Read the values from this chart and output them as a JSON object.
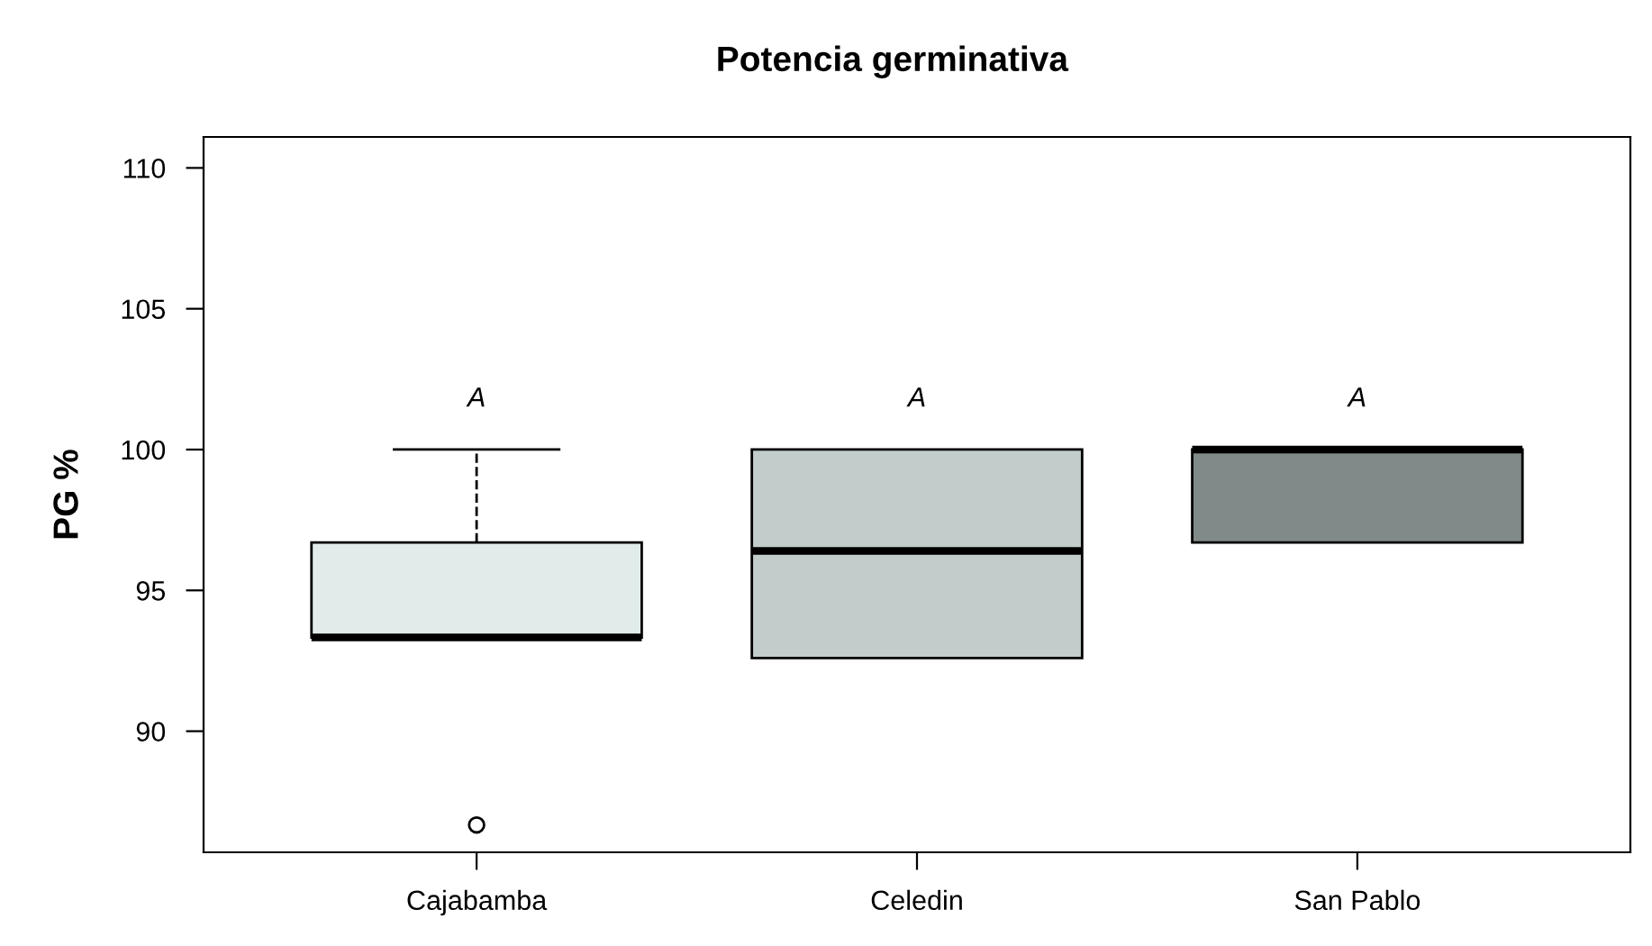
{
  "chart_data": {
    "type": "box",
    "title": "Potencia germinativa",
    "ylabel": "PG %",
    "categories": [
      "Cajabamba",
      "Celedin",
      "San Pablo"
    ],
    "colors": [
      "#e0ebea",
      "#c2cccb",
      "#808a88"
    ],
    "boxes": [
      {
        "low": 93.33,
        "q1": 93.33,
        "median": 93.33,
        "q3": 96.7,
        "high": 100,
        "outliers": [
          86.67
        ]
      },
      {
        "low": 92.6,
        "q1": 92.6,
        "median": 96.4,
        "q3": 100,
        "high": 100
      },
      {
        "low": 96.7,
        "q1": 96.7,
        "median": 100,
        "q3": 100,
        "high": 100
      }
    ],
    "annotations": [
      "A",
      "A",
      "A"
    ],
    "ylim": [
      85.7,
      111.1
    ],
    "yticks": [
      90,
      95,
      100,
      105,
      110
    ],
    "grid": false
  }
}
